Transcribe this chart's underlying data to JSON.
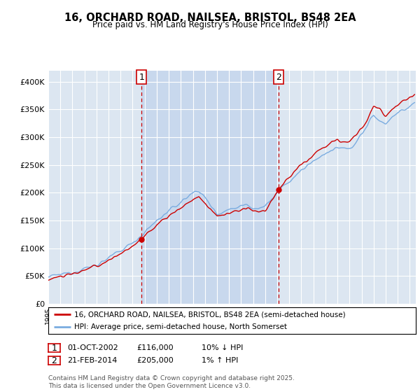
{
  "title": "16, ORCHARD ROAD, NAILSEA, BRISTOL, BS48 2EA",
  "subtitle": "Price paid vs. HM Land Registry's House Price Index (HPI)",
  "legend_line1": "16, ORCHARD ROAD, NAILSEA, BRISTOL, BS48 2EA (semi-detached house)",
  "legend_line2": "HPI: Average price, semi-detached house, North Somerset",
  "footer": "Contains HM Land Registry data © Crown copyright and database right 2025.\nThis data is licensed under the Open Government Licence v3.0.",
  "transaction1_date": "01-OCT-2002",
  "transaction1_price": "£116,000",
  "transaction1_hpi": "10% ↓ HPI",
  "transaction1_x": 2002.75,
  "transaction1_y": 116000,
  "transaction2_date": "21-FEB-2014",
  "transaction2_price": "£205,000",
  "transaction2_hpi": "1% ↑ HPI",
  "transaction2_x": 2014.13,
  "transaction2_y": 205000,
  "ylim": [
    0,
    420000
  ],
  "xlim_start": 1995,
  "xlim_end": 2025.5,
  "background_color": "#dce6f1",
  "shade_color": "#c8d8ed",
  "red_line_color": "#cc0000",
  "blue_line_color": "#7aace0",
  "vline_color": "#cc0000",
  "grid_color": "#ffffff",
  "title_fontsize": 10.5,
  "subtitle_fontsize": 8.5
}
